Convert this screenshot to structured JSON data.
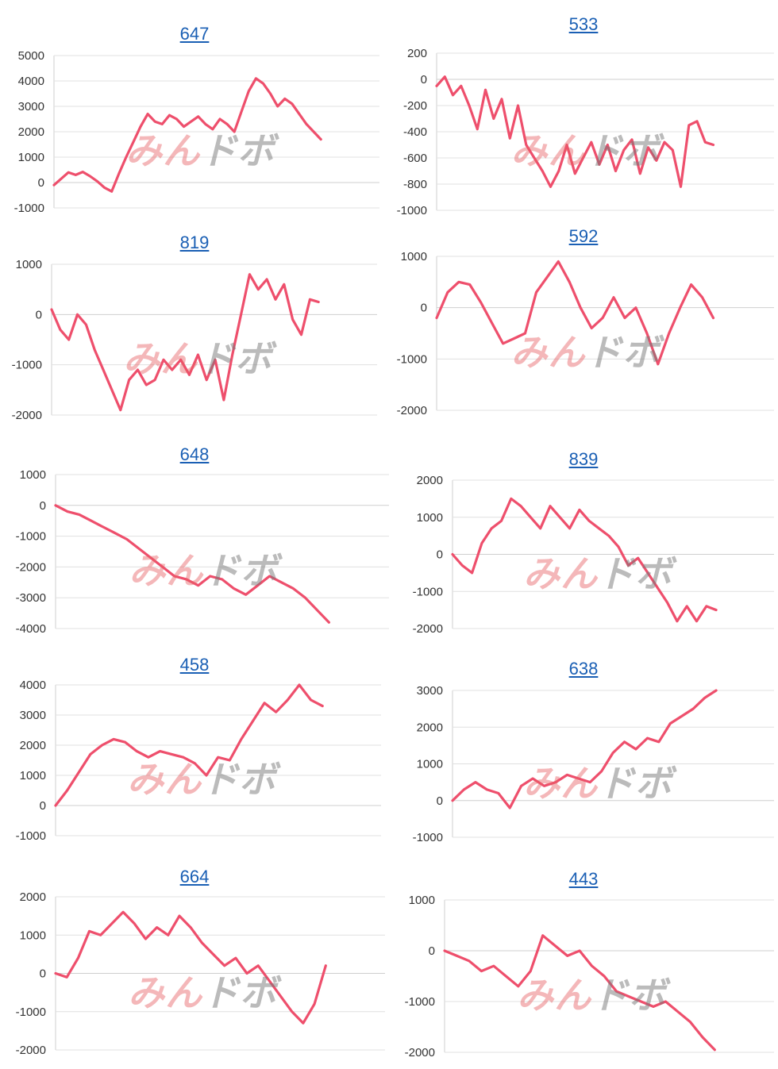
{
  "colors": {
    "line": "#ee4f6c",
    "link": "#1a5fb4"
  },
  "chart_data": [
    {
      "type": "line",
      "title": "647",
      "ylim": [
        -1000,
        5000
      ],
      "ticks": [
        5000,
        4000,
        3000,
        2000,
        1000,
        0,
        -1000
      ],
      "y": [
        -100,
        150,
        400,
        300,
        420,
        250,
        50,
        -200,
        -350,
        350,
        1000,
        1600,
        2200,
        2700,
        2400,
        2300,
        2650,
        2500,
        2200,
        2400,
        2600,
        2300,
        2100,
        2500,
        2300,
        2000,
        2800,
        3600,
        4100,
        3900,
        3500,
        3000,
        3300,
        3100,
        2700,
        2300,
        2000,
        1700
      ]
    },
    {
      "type": "line",
      "title": "533",
      "ylim": [
        -1000,
        200
      ],
      "ticks": [
        200,
        0,
        -200,
        -400,
        -600,
        -800,
        -1000
      ],
      "y": [
        -50,
        20,
        -120,
        -50,
        -200,
        -380,
        -80,
        -300,
        -150,
        -450,
        -200,
        -500,
        -600,
        -700,
        -820,
        -700,
        -500,
        -720,
        -600,
        -480,
        -650,
        -500,
        -700,
        -540,
        -460,
        -720,
        -520,
        -620,
        -480,
        -540,
        -820,
        -350,
        -320,
        -480,
        -500
      ]
    },
    {
      "type": "line",
      "title": "819",
      "ylim": [
        -2000,
        1000
      ],
      "ticks": [
        1000,
        0,
        -1000,
        -2000
      ],
      "y": [
        100,
        -300,
        -500,
        0,
        -200,
        -700,
        -1100,
        -1500,
        -1900,
        -1300,
        -1100,
        -1400,
        -1300,
        -900,
        -1100,
        -900,
        -1200,
        -800,
        -1300,
        -900,
        -1700,
        -800,
        0,
        800,
        500,
        700,
        300,
        600,
        -100,
        -400,
        300,
        250
      ]
    },
    {
      "type": "line",
      "title": "592",
      "ylim": [
        -2000,
        1000
      ],
      "ticks": [
        1000,
        0,
        -1000,
        -2000
      ],
      "y": [
        -200,
        300,
        500,
        450,
        100,
        -300,
        -700,
        -600,
        -500,
        300,
        600,
        900,
        500,
        0,
        -400,
        -200,
        200,
        -200,
        0,
        -500,
        -1100,
        -500,
        0,
        450,
        200,
        -200
      ]
    },
    {
      "type": "line",
      "title": "648",
      "ylim": [
        -4000,
        1000
      ],
      "ticks": [
        1000,
        0,
        -1000,
        -2000,
        -3000,
        -4000
      ],
      "y": [
        0,
        -200,
        -300,
        -500,
        -700,
        -900,
        -1100,
        -1400,
        -1700,
        -2000,
        -2300,
        -2400,
        -2600,
        -2300,
        -2400,
        -2700,
        -2900,
        -2600,
        -2300,
        -2500,
        -2700,
        -3000,
        -3400,
        -3800
      ]
    },
    {
      "type": "line",
      "title": "839",
      "ylim": [
        -2000,
        2000
      ],
      "ticks": [
        2000,
        1000,
        0,
        -1000,
        -2000
      ],
      "y": [
        0,
        -300,
        -500,
        300,
        700,
        900,
        1500,
        1300,
        1000,
        700,
        1300,
        1000,
        700,
        1200,
        900,
        700,
        500,
        200,
        -300,
        -100,
        -500,
        -900,
        -1300,
        -1800,
        -1400,
        -1800,
        -1400,
        -1500
      ]
    },
    {
      "type": "line",
      "title": "458",
      "ylim": [
        -1000,
        4000
      ],
      "ticks": [
        4000,
        3000,
        2000,
        1000,
        0,
        -1000
      ],
      "y": [
        0,
        500,
        1100,
        1700,
        2000,
        2200,
        2100,
        1800,
        1600,
        1800,
        1700,
        1600,
        1400,
        1000,
        1600,
        1500,
        2200,
        2800,
        3400,
        3100,
        3500,
        4000,
        3500,
        3300
      ]
    },
    {
      "type": "line",
      "title": "638",
      "ylim": [
        -1000,
        3000
      ],
      "ticks": [
        3000,
        2000,
        1000,
        0,
        -1000
      ],
      "y": [
        0,
        300,
        500,
        300,
        200,
        -200,
        400,
        600,
        400,
        500,
        700,
        600,
        500,
        800,
        1300,
        1600,
        1400,
        1700,
        1600,
        2100,
        2300,
        2500,
        2800,
        3000
      ]
    },
    {
      "type": "line",
      "title": "664",
      "ylim": [
        -2000,
        2000
      ],
      "ticks": [
        2000,
        1000,
        0,
        -1000,
        -2000
      ],
      "y": [
        0,
        -100,
        400,
        1100,
        1000,
        1300,
        1600,
        1300,
        900,
        1200,
        1000,
        1500,
        1200,
        800,
        500,
        200,
        400,
        0,
        200,
        -200,
        -600,
        -1000,
        -1300,
        -800,
        200
      ]
    },
    {
      "type": "line",
      "title": "443",
      "ylim": [
        -2000,
        1000
      ],
      "ticks": [
        1000,
        0,
        -1000,
        -2000
      ],
      "y": [
        0,
        -100,
        -200,
        -400,
        -300,
        -500,
        -700,
        -400,
        300,
        100,
        -100,
        0,
        -300,
        -500,
        -800,
        -900,
        -1000,
        -1100,
        -1000,
        -1200,
        -1400,
        -1700,
        -1950
      ]
    }
  ],
  "watermark": {
    "part1": "みん",
    "part2": "ドボ"
  }
}
